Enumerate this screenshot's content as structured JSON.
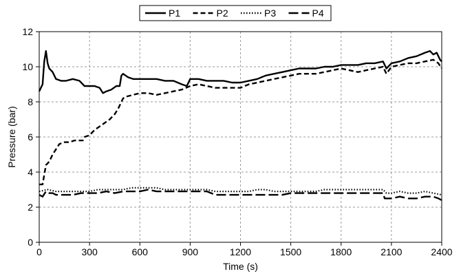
{
  "chart_data": {
    "type": "line",
    "xlabel": "Time (s)",
    "ylabel": "Pressure (bar)",
    "xlim": [
      0,
      2400
    ],
    "ylim": [
      0,
      12
    ],
    "xticks": [
      0,
      300,
      600,
      900,
      1200,
      1500,
      1800,
      2100,
      2400
    ],
    "yticks": [
      0,
      2,
      4,
      6,
      8,
      10,
      12
    ],
    "grid": true,
    "legend_position": "top-center",
    "series": [
      {
        "name": "P1",
        "style": "solid",
        "color": "#000000",
        "x": [
          0,
          10,
          20,
          30,
          40,
          50,
          60,
          80,
          100,
          130,
          160,
          200,
          240,
          270,
          300,
          330,
          360,
          380,
          400,
          430,
          460,
          480,
          490,
          500,
          530,
          560,
          600,
          650,
          700,
          750,
          800,
          850,
          880,
          900,
          950,
          1000,
          1050,
          1100,
          1150,
          1200,
          1250,
          1300,
          1350,
          1400,
          1450,
          1500,
          1550,
          1600,
          1650,
          1700,
          1750,
          1800,
          1850,
          1900,
          1950,
          2000,
          2050,
          2070,
          2100,
          2150,
          2200,
          2250,
          2300,
          2330,
          2350,
          2370,
          2390,
          2400
        ],
        "y": [
          8.6,
          8.8,
          9.0,
          10.3,
          10.9,
          10.2,
          9.9,
          9.7,
          9.3,
          9.2,
          9.2,
          9.3,
          9.2,
          8.9,
          8.9,
          8.9,
          8.8,
          8.5,
          8.6,
          8.7,
          8.9,
          8.9,
          9.5,
          9.6,
          9.4,
          9.3,
          9.3,
          9.3,
          9.3,
          9.2,
          9.2,
          9.0,
          8.9,
          9.3,
          9.3,
          9.2,
          9.2,
          9.2,
          9.1,
          9.1,
          9.2,
          9.3,
          9.5,
          9.6,
          9.7,
          9.8,
          9.9,
          9.9,
          9.9,
          10.0,
          10.0,
          10.1,
          10.1,
          10.1,
          10.2,
          10.2,
          10.3,
          9.9,
          10.2,
          10.3,
          10.5,
          10.6,
          10.8,
          10.9,
          10.7,
          10.8,
          10.4,
          10.3
        ]
      },
      {
        "name": "P2",
        "style": "dashed",
        "color": "#000000",
        "x": [
          0,
          20,
          40,
          50,
          60,
          80,
          100,
          120,
          150,
          180,
          210,
          240,
          260,
          270,
          300,
          330,
          360,
          390,
          420,
          450,
          470,
          490,
          500,
          520,
          560,
          600,
          650,
          700,
          750,
          800,
          850,
          900,
          950,
          1000,
          1050,
          1100,
          1150,
          1200,
          1250,
          1300,
          1350,
          1400,
          1450,
          1500,
          1550,
          1600,
          1650,
          1700,
          1750,
          1800,
          1850,
          1900,
          1950,
          2000,
          2050,
          2070,
          2100,
          2150,
          2200,
          2250,
          2300,
          2350,
          2380,
          2400
        ],
        "y": [
          3.3,
          3.3,
          4.4,
          4.5,
          4.6,
          5.0,
          5.3,
          5.6,
          5.7,
          5.7,
          5.8,
          5.8,
          5.8,
          6.0,
          6.1,
          6.4,
          6.6,
          6.8,
          7.0,
          7.3,
          7.6,
          8.0,
          8.2,
          8.3,
          8.4,
          8.5,
          8.5,
          8.4,
          8.5,
          8.6,
          8.7,
          8.9,
          9.0,
          8.9,
          8.8,
          8.8,
          8.8,
          8.8,
          9.0,
          9.1,
          9.2,
          9.3,
          9.4,
          9.5,
          9.6,
          9.6,
          9.6,
          9.7,
          9.8,
          9.9,
          9.8,
          9.7,
          9.8,
          9.9,
          10.0,
          9.6,
          10.0,
          10.1,
          10.2,
          10.2,
          10.3,
          10.4,
          10.2,
          9.9
        ]
      },
      {
        "name": "P3",
        "style": "dotted",
        "color": "#000000",
        "x": [
          0,
          50,
          100,
          150,
          200,
          250,
          300,
          350,
          400,
          450,
          500,
          550,
          600,
          650,
          700,
          750,
          800,
          850,
          900,
          950,
          1000,
          1050,
          1100,
          1150,
          1200,
          1250,
          1300,
          1350,
          1400,
          1450,
          1500,
          1550,
          1600,
          1650,
          1700,
          1750,
          1800,
          1850,
          1900,
          1950,
          2000,
          2050,
          2070,
          2100,
          2150,
          2200,
          2250,
          2300,
          2350,
          2400
        ],
        "y": [
          2.9,
          3.0,
          2.9,
          2.9,
          2.9,
          2.9,
          2.9,
          3.0,
          3.0,
          3.0,
          3.0,
          3.1,
          3.1,
          3.1,
          3.1,
          3.0,
          3.0,
          3.0,
          3.0,
          3.0,
          3.0,
          2.9,
          2.9,
          2.9,
          2.9,
          2.9,
          3.0,
          3.0,
          2.9,
          2.9,
          2.9,
          2.9,
          2.9,
          2.9,
          3.0,
          3.0,
          3.0,
          3.0,
          3.0,
          3.0,
          3.0,
          3.0,
          2.8,
          2.8,
          2.9,
          2.8,
          2.8,
          2.9,
          2.8,
          2.7
        ]
      },
      {
        "name": "P4",
        "style": "long-dash",
        "color": "#000000",
        "x": [
          0,
          20,
          40,
          60,
          80,
          100,
          150,
          200,
          250,
          300,
          350,
          400,
          450,
          500,
          550,
          600,
          650,
          700,
          750,
          800,
          850,
          900,
          950,
          1000,
          1050,
          1100,
          1150,
          1200,
          1250,
          1300,
          1350,
          1400,
          1450,
          1500,
          1550,
          1600,
          1650,
          1700,
          1750,
          1800,
          1850,
          1900,
          1950,
          2000,
          2050,
          2060,
          2100,
          2150,
          2200,
          2250,
          2300,
          2350,
          2380,
          2400
        ],
        "y": [
          2.7,
          2.6,
          2.9,
          2.8,
          2.8,
          2.7,
          2.7,
          2.7,
          2.8,
          2.8,
          2.8,
          2.9,
          2.8,
          2.9,
          2.9,
          2.9,
          3.0,
          2.9,
          2.9,
          2.9,
          2.9,
          2.9,
          2.9,
          2.9,
          2.7,
          2.7,
          2.7,
          2.7,
          2.7,
          2.7,
          2.7,
          2.7,
          2.7,
          2.8,
          2.8,
          2.8,
          2.8,
          2.8,
          2.8,
          2.8,
          2.8,
          2.8,
          2.8,
          2.8,
          2.8,
          2.5,
          2.5,
          2.6,
          2.5,
          2.5,
          2.6,
          2.6,
          2.5,
          2.4
        ]
      }
    ]
  }
}
